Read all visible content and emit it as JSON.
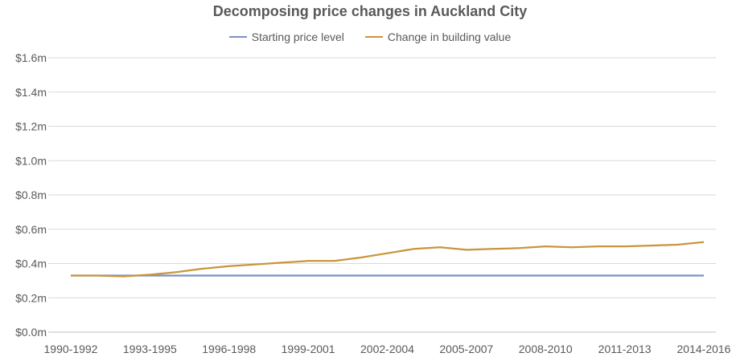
{
  "chart_data": {
    "type": "line",
    "title": "Decomposing price changes in Auckland City",
    "xlabel": "",
    "ylabel": "",
    "x": [
      "1990-1992",
      "1991-1993",
      "1992-1994",
      "1993-1995",
      "1994-1996",
      "1995-1997",
      "1996-1998",
      "1997-1999",
      "1998-2000",
      "1999-2001",
      "2000-2002",
      "2001-2003",
      "2002-2004",
      "2003-2005",
      "2004-2006",
      "2005-2007",
      "2006-2008",
      "2007-2009",
      "2008-2010",
      "2009-2011",
      "2010-2012",
      "2011-2013",
      "2012-2014",
      "2013-2015",
      "2014-2016"
    ],
    "x_tick_labels": [
      "1990-1992",
      "1993-1995",
      "1996-1998",
      "1999-2001",
      "2002-2004",
      "2005-2007",
      "2008-2010",
      "2011-2013",
      "2014-2016"
    ],
    "y_tick_labels": [
      "$0.0m",
      "$0.2m",
      "$0.4m",
      "$0.6m",
      "$0.8m",
      "$1.0m",
      "$1.2m",
      "$1.4m",
      "$1.6m"
    ],
    "ylim": [
      0,
      1.6
    ],
    "grid": true,
    "legend_position": "top-center",
    "series": [
      {
        "name": "Starting price level",
        "color": "#7b8fc7",
        "values": [
          0.33,
          0.33,
          0.33,
          0.33,
          0.33,
          0.33,
          0.33,
          0.33,
          0.33,
          0.33,
          0.33,
          0.33,
          0.33,
          0.33,
          0.33,
          0.33,
          0.33,
          0.33,
          0.33,
          0.33,
          0.33,
          0.33,
          0.33,
          0.33,
          0.33
        ]
      },
      {
        "name": "Change in building value",
        "color": "#c9953c",
        "values": [
          0.33,
          0.33,
          0.325,
          0.335,
          0.35,
          0.37,
          0.385,
          0.395,
          0.405,
          0.415,
          0.415,
          0.435,
          0.46,
          0.485,
          0.495,
          0.48,
          0.485,
          0.49,
          0.5,
          0.495,
          0.5,
          0.5,
          0.505,
          0.51,
          0.525
        ]
      }
    ]
  }
}
